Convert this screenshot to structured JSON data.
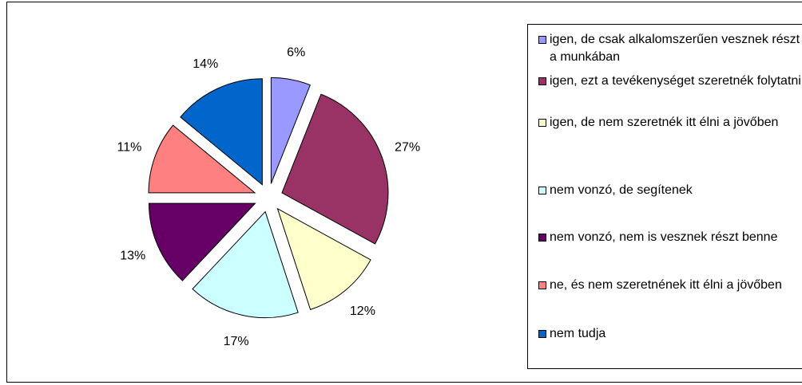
{
  "chart_data": {
    "type": "pie",
    "categories": [
      "igen, de csak alkalomszerűen vesznek részt a munkában",
      "igen, ezt a tevékenységet szeretnék folytatni",
      "igen, de nem szeretnék itt élni a jövőben",
      "nem vonzó, de segítenek",
      "nem vonzó, nem is vesznek részt benne",
      "ne, és nem szeretnének itt élni a jövőben",
      "nem tudja"
    ],
    "values": [
      6,
      27,
      12,
      17,
      13,
      11,
      14
    ],
    "value_labels": [
      "6%",
      "27%",
      "12%",
      "17%",
      "13%",
      "11%",
      "14%"
    ],
    "colors": [
      "#9999FF",
      "#993366",
      "#FFFFCC",
      "#CCFFFF",
      "#660066",
      "#FF8080",
      "#0066CC"
    ],
    "legend": "right"
  }
}
